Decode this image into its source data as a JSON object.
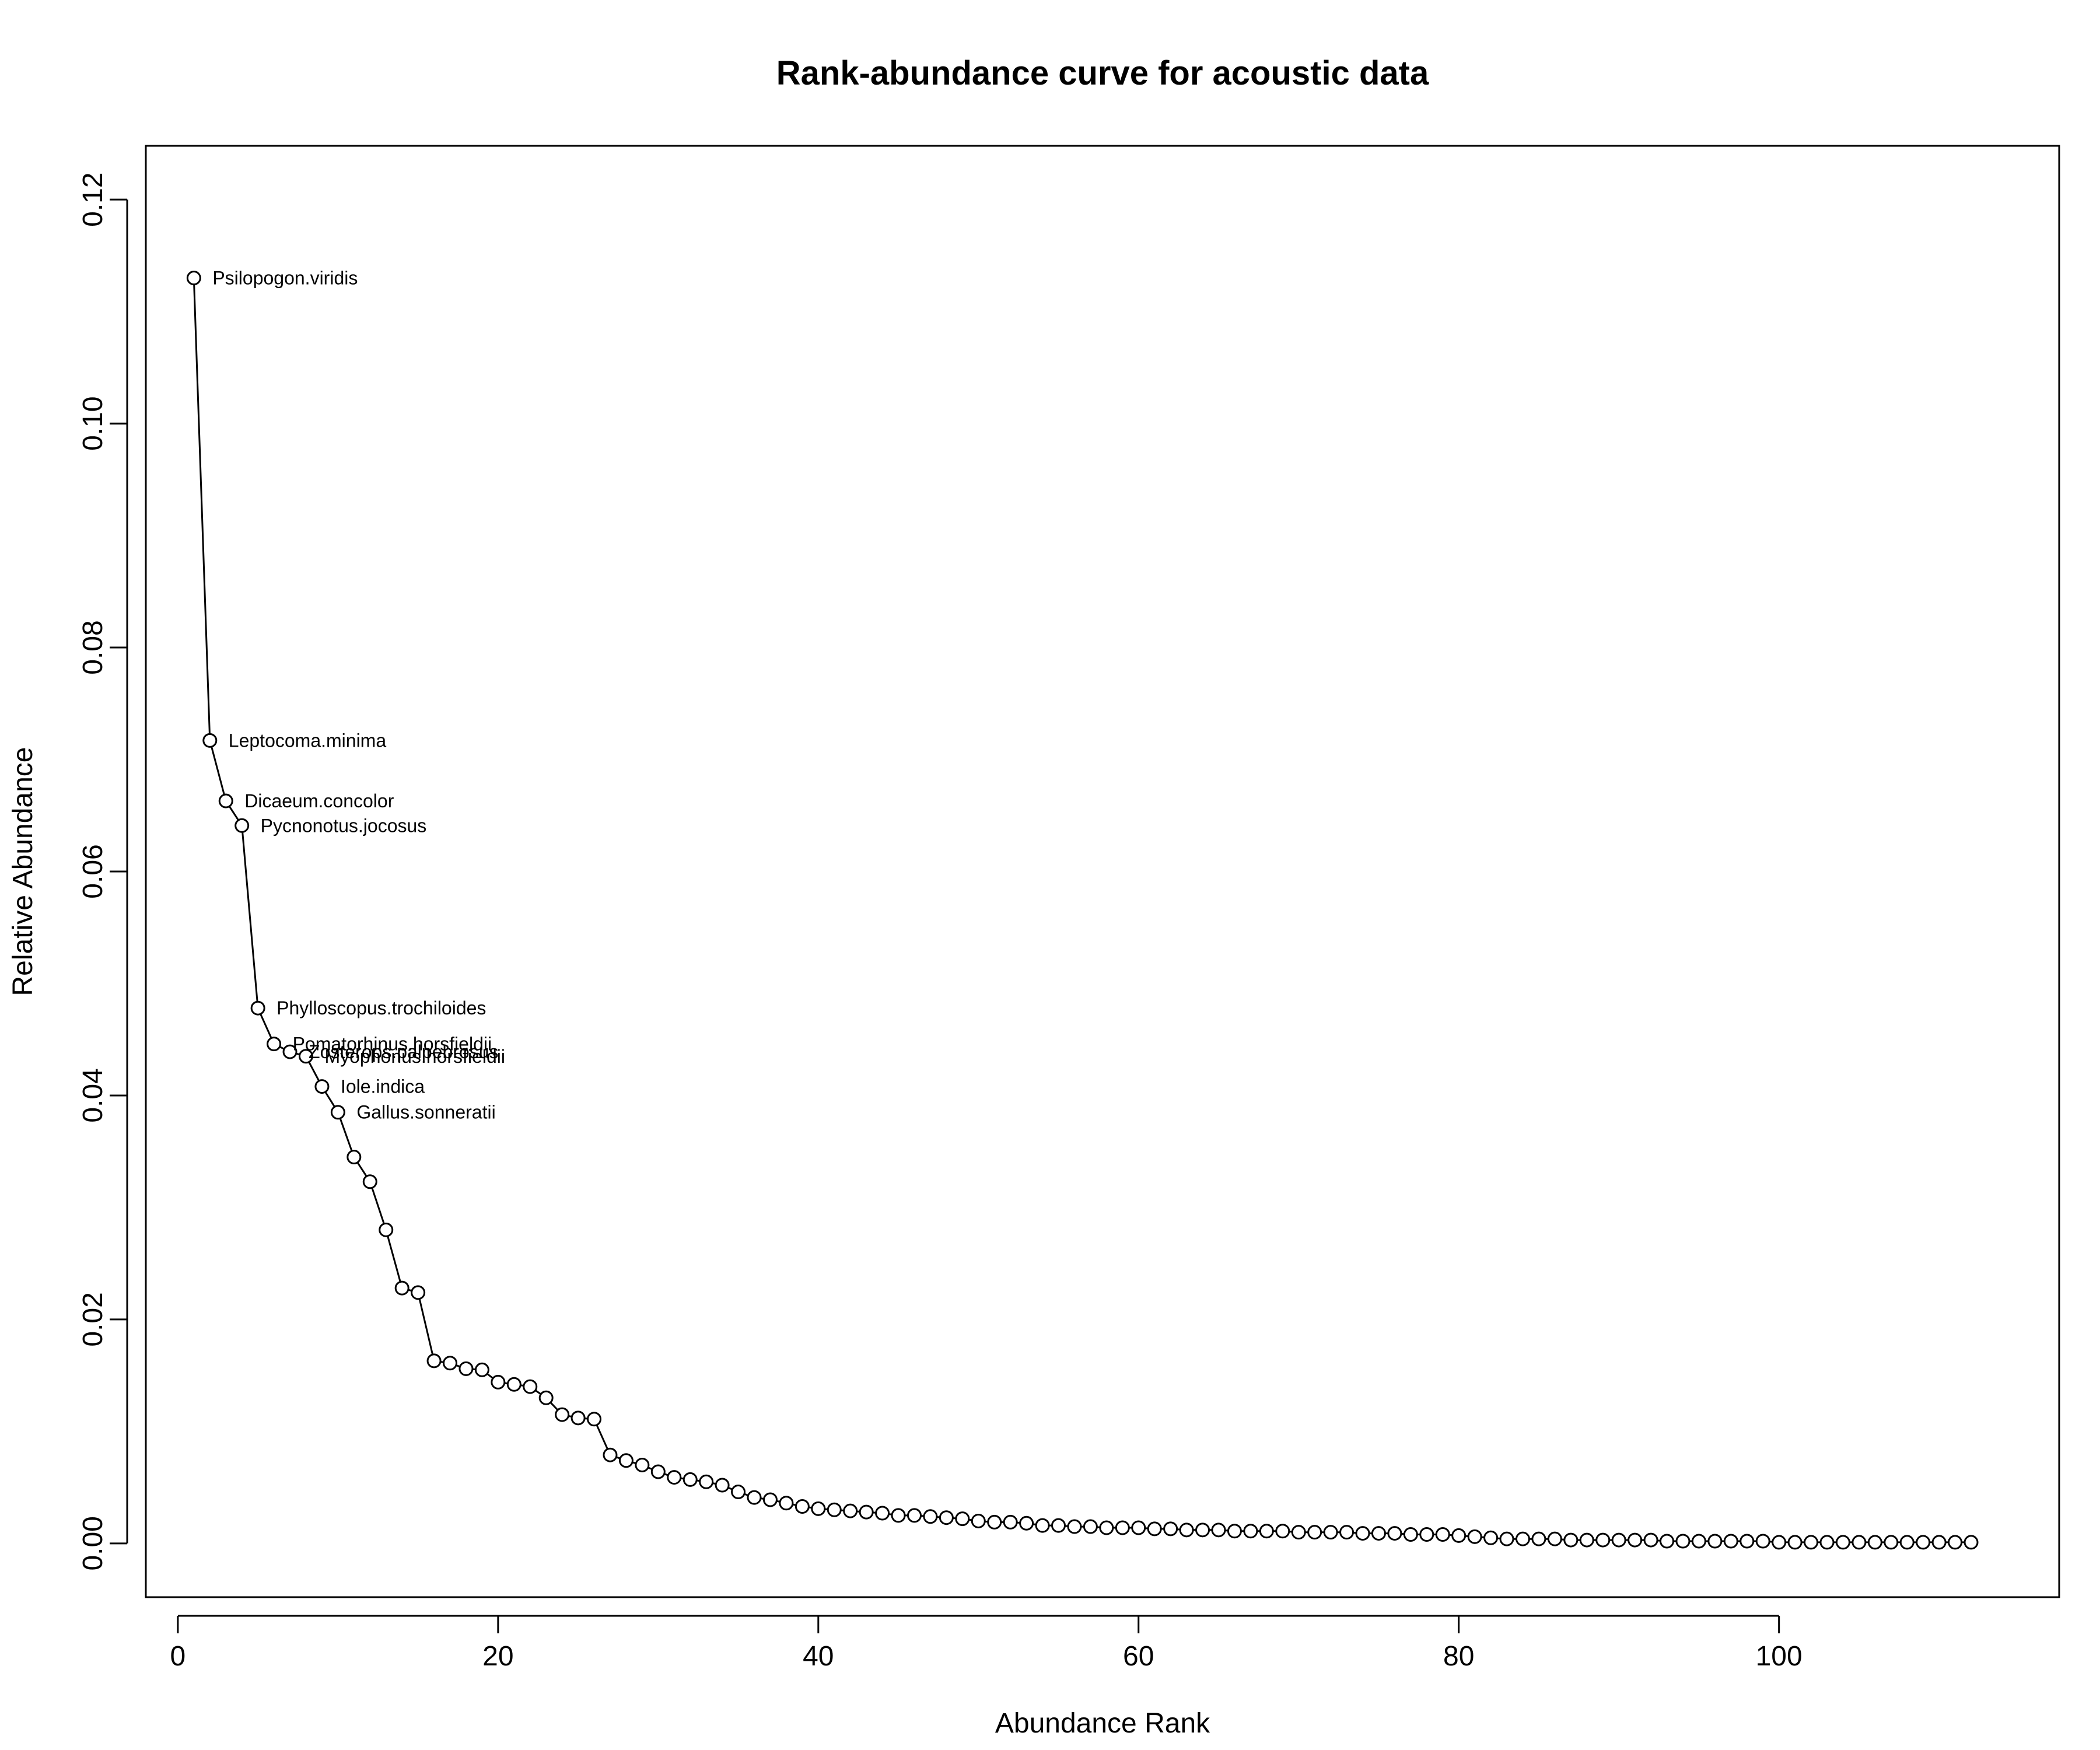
{
  "chart_data": {
    "type": "line",
    "title": "Rank-abundance curve for acoustic data",
    "xlabel": "Abundance Rank",
    "ylabel": "Relative Abundance",
    "xlim": [
      -2,
      117.5
    ],
    "ylim": [
      -0.0048,
      0.1248
    ],
    "xticks": [
      0,
      20,
      40,
      60,
      80,
      100
    ],
    "xtick_labels": [
      "0",
      "20",
      "40",
      "60",
      "80",
      "100"
    ],
    "yticks": [
      0,
      0.02,
      0.04,
      0.06,
      0.08,
      0.1,
      0.12
    ],
    "ytick_labels": [
      "0.00",
      "0.02",
      "0.04",
      "0.06",
      "0.08",
      "0.10",
      "0.12"
    ],
    "grid": false,
    "legend": "none",
    "marker": "open-circle",
    "line_color": "#000000",
    "point_labels": [
      "Psilopogon.viridis",
      "Leptocoma.minima",
      "Dicaeum.concolor",
      "Pycnonotus.jocosus",
      "Phylloscopus.trochiloides",
      "Pomatorhinus.horsfieldii",
      "Zosterops.palpebrosus",
      "Myophonus.horsfieldii",
      "Iole.indica",
      "Gallus.sonneratii"
    ],
    "series": [
      {
        "x": [
          1,
          2,
          3,
          4,
          5,
          6,
          7,
          8,
          9,
          10,
          11,
          12,
          13,
          14,
          15,
          16,
          17,
          18,
          19,
          20,
          21,
          22,
          23,
          24,
          25,
          26,
          27,
          28,
          29,
          30,
          31,
          32,
          33,
          34,
          35,
          36,
          37,
          38,
          39,
          40,
          41,
          42,
          43,
          44,
          45,
          46,
          47,
          48,
          49,
          50,
          51,
          52,
          53,
          54,
          55,
          56,
          57,
          58,
          59,
          60,
          61,
          62,
          63,
          64,
          65,
          66,
          67,
          68,
          69,
          70,
          71,
          72,
          73,
          74,
          75,
          76,
          77,
          78,
          79,
          80,
          81,
          82,
          83,
          84,
          85,
          86,
          87,
          88,
          89,
          90,
          91,
          92,
          93,
          94,
          95,
          96,
          97,
          98,
          99,
          100,
          101,
          102,
          103,
          104,
          105,
          106,
          107,
          108,
          109,
          110,
          111,
          112
        ],
        "values": [
          0.113,
          0.0717,
          0.0663,
          0.0641,
          0.0478,
          0.0446,
          0.0439,
          0.0435,
          0.0408,
          0.0385,
          0.0345,
          0.0323,
          0.028,
          0.0228,
          0.0224,
          0.0163,
          0.0161,
          0.0156,
          0.0155,
          0.0144,
          0.0142,
          0.014,
          0.013,
          0.0115,
          0.0112,
          0.0111,
          0.0079,
          0.0074,
          0.007,
          0.0064,
          0.0059,
          0.0057,
          0.0055,
          0.0052,
          0.0046,
          0.0041,
          0.0039,
          0.0036,
          0.0033,
          0.0031,
          0.003,
          0.0029,
          0.0028,
          0.0027,
          0.0025,
          0.0025,
          0.0024,
          0.0023,
          0.0022,
          0.002,
          0.0019,
          0.0019,
          0.0018,
          0.0016,
          0.0016,
          0.0015,
          0.0015,
          0.0014,
          0.0014,
          0.0014,
          0.0013,
          0.0013,
          0.0012,
          0.0012,
          0.0012,
          0.0011,
          0.0011,
          0.0011,
          0.0011,
          0.001,
          0.001,
          0.001,
          0.001,
          0.0009,
          0.0009,
          0.0009,
          0.0008,
          0.0008,
          0.0008,
          0.0007,
          0.0006,
          0.0005,
          0.0004,
          0.0004,
          0.0004,
          0.0004,
          0.0003,
          0.0003,
          0.0003,
          0.0003,
          0.0003,
          0.0003,
          0.0002,
          0.0002,
          0.0002,
          0.0002,
          0.0002,
          0.0002,
          0.0002,
          0.0001,
          0.0001,
          0.0001,
          0.0001,
          0.0001,
          0.0001,
          0.0001,
          0.0001,
          0.0001,
          0.0001,
          0.0001,
          0.0001,
          0.0001
        ]
      }
    ]
  }
}
